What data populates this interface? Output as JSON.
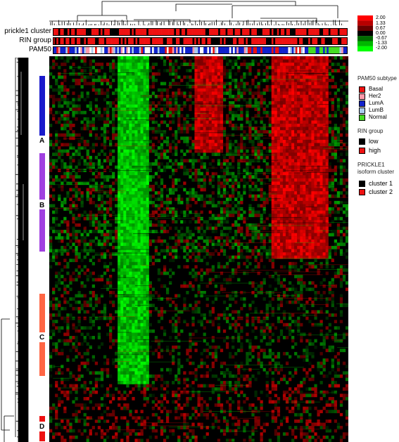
{
  "chart_data": {
    "type": "heatmap",
    "annotation_tracks": [
      {
        "label": "prickle1 cluster",
        "colors": [
          "#000000",
          "#ee1111"
        ]
      },
      {
        "label": "RIN group",
        "colors": [
          "#000000",
          "#ee1111"
        ]
      },
      {
        "label": "PAM50",
        "colors": [
          "#ee1111",
          "#ff99aa",
          "#1122cc",
          "#aaccee",
          "#44dd22",
          "#ffffff"
        ]
      }
    ],
    "color_scale": {
      "ticks": [
        "2.00",
        "1.33",
        "0.67",
        "0.00",
        "-0.67",
        "-1.33",
        "-2.00"
      ],
      "colors": [
        "#ff0000",
        "#b80000",
        "#6a0000",
        "#000000",
        "#006a00",
        "#00b800",
        "#00ff00"
      ]
    },
    "legends": [
      {
        "title": "PAM50 subtype",
        "items": [
          {
            "label": "Basal",
            "color": "#ee1111"
          },
          {
            "label": "Her2",
            "color": "#ff99aa"
          },
          {
            "label": "LumA",
            "color": "#1122cc"
          },
          {
            "label": "LumB",
            "color": "#aaccee"
          },
          {
            "label": "Normal",
            "color": "#44dd22"
          }
        ]
      },
      {
        "title": "RIN group",
        "items": [
          {
            "label": "low",
            "color": "#000000"
          },
          {
            "label": "high",
            "color": "#ee1111"
          }
        ]
      },
      {
        "title": "PRICKLE1 isoform cluster",
        "title_lines": [
          "PRICKLE1",
          "isoform cluster"
        ],
        "items": [
          {
            "label": "cluster 1",
            "color": "#000000"
          },
          {
            "label": "cluster 2",
            "color": "#ee1111"
          }
        ]
      }
    ],
    "gene_clusters": [
      {
        "label": "A",
        "color": "#1a1acc"
      },
      {
        "label": "B",
        "color": "#a040e0"
      },
      {
        "label": "C",
        "color": "#ff6644"
      },
      {
        "label": "D",
        "color": "#ee1111"
      }
    ]
  }
}
